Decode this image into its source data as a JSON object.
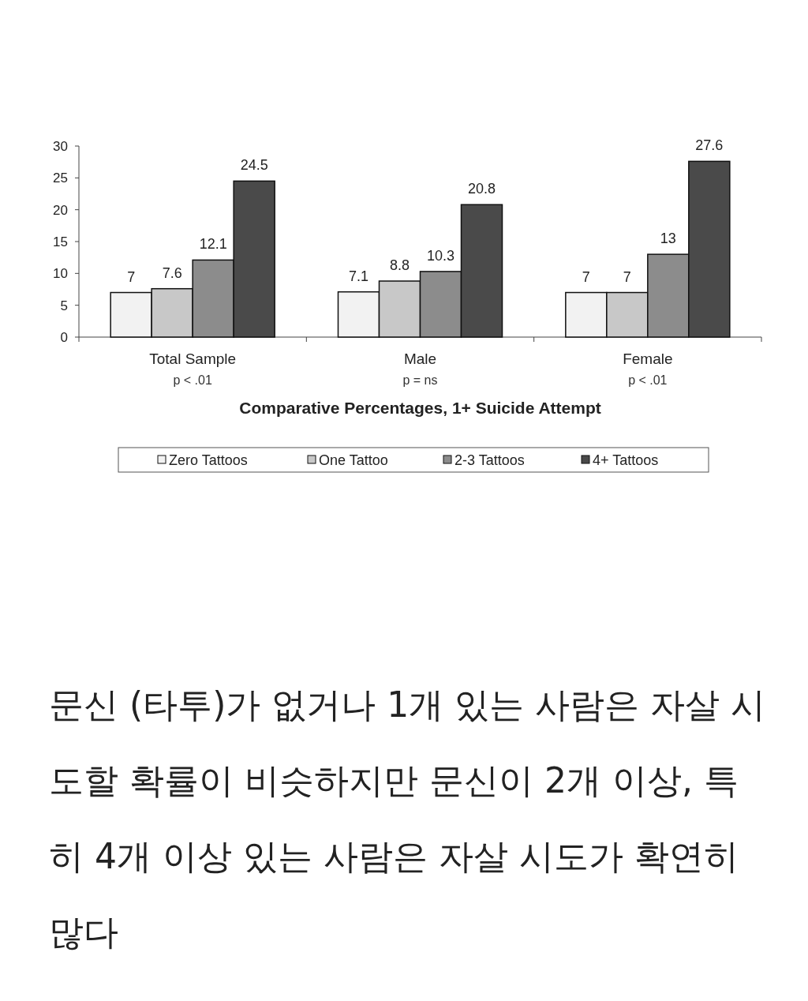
{
  "chart_data": {
    "type": "bar",
    "categories": [
      "Total Sample",
      "Male",
      "Female"
    ],
    "series": [
      {
        "name": "Zero Tattoos",
        "color": "#f2f2f2",
        "values": [
          7,
          7.1,
          7
        ]
      },
      {
        "name": "One Tattoo",
        "color": "#c8c8c8",
        "values": [
          7.6,
          8.8,
          7
        ]
      },
      {
        "name": "2-3 Tattoos",
        "color": "#8c8c8c",
        "values": [
          12.1,
          10.3,
          13
        ]
      },
      {
        "name": "4+ Tattoos",
        "color": "#4a4a4a",
        "values": [
          24.5,
          20.8,
          27.6
        ]
      }
    ],
    "ylim": [
      0,
      30
    ],
    "yticks": [
      0,
      5,
      10,
      15,
      20,
      25,
      30
    ],
    "xlabel": "Comparative Percentages, 1+ Suicide Attempt",
    "data_labels": true,
    "legend": "bottom",
    "annotations": [
      "p < .01",
      "p = ns",
      "p < .01",
      "문신 (타투)가 없거나 1개 있는 사람은 자살 시도할 확률이 비슷하지만 문신이 2개 이상, 특히 4개 이상 있는 사람은 자살 시도가 확연히 많다"
    ]
  }
}
